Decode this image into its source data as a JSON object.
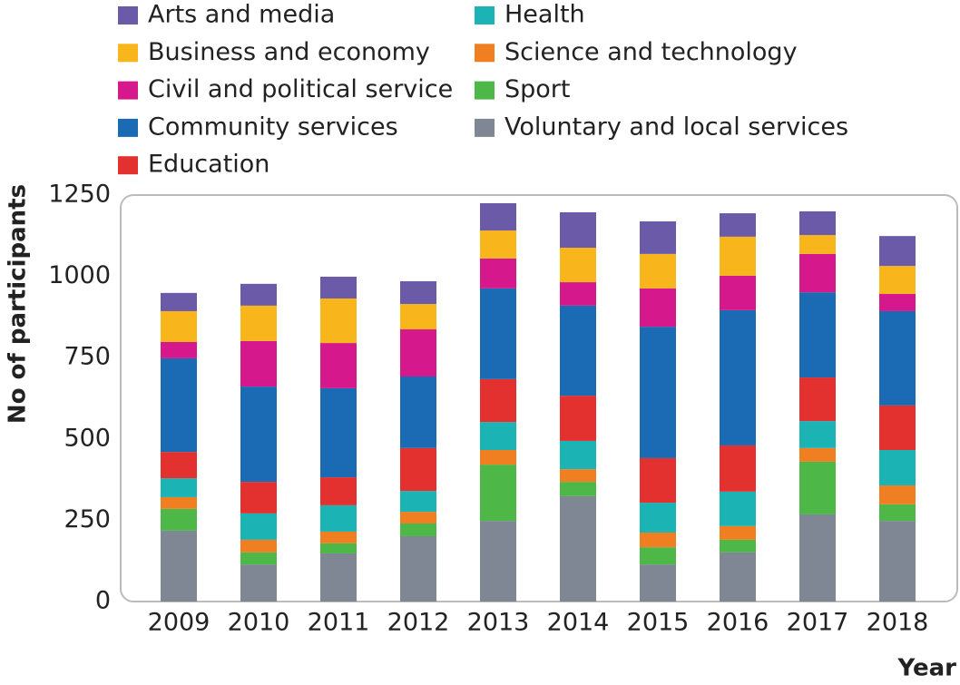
{
  "chart_data": {
    "type": "bar",
    "stacked": true,
    "y_label": "No of participants",
    "x_label": "Year",
    "categories": [
      "2009",
      "2010",
      "2011",
      "2012",
      "2013",
      "2014",
      "2015",
      "2016",
      "2017",
      "2018"
    ],
    "series": [
      {
        "name": "Arts and media",
        "color": "#6a5aa8",
        "values": [
          56,
          67,
          67,
          70,
          84,
          109,
          100,
          72,
          73,
          92
        ]
      },
      {
        "name": "Business and economy",
        "color": "#f9b51c",
        "values": [
          95,
          109,
          137,
          78,
          86,
          106,
          106,
          120,
          58,
          86
        ]
      },
      {
        "name": "Civil and political service",
        "color": "#d6188d",
        "values": [
          50,
          140,
          139,
          145,
          92,
          72,
          118,
          106,
          118,
          53
        ]
      },
      {
        "name": "Community services",
        "color": "#1a6bb3",
        "values": [
          288,
          293,
          274,
          220,
          279,
          277,
          404,
          416,
          262,
          290
        ]
      },
      {
        "name": "Education",
        "color": "#e3312f",
        "values": [
          81,
          97,
          86,
          132,
          132,
          139,
          137,
          142,
          134,
          137
        ]
      },
      {
        "name": "Health",
        "color": "#1bb3b4",
        "values": [
          58,
          81,
          81,
          64,
          86,
          87,
          92,
          106,
          83,
          109
        ]
      },
      {
        "name": "Science and technology",
        "color": "#f07f22",
        "values": [
          36,
          39,
          36,
          36,
          45,
          39,
          45,
          42,
          42,
          58
        ]
      },
      {
        "name": "Sport",
        "color": "#4db748",
        "values": [
          67,
          37,
          31,
          39,
          173,
          44,
          53,
          39,
          162,
          51
        ]
      },
      {
        "name": "Voluntary and local services",
        "color": "#7f8694",
        "values": [
          218,
          114,
          148,
          201,
          248,
          324,
          114,
          151,
          268,
          248
        ]
      }
    ],
    "ylim": [
      0,
      1250
    ],
    "yticks": [
      0,
      250,
      500,
      750,
      1000,
      1250
    ],
    "grid": false
  }
}
